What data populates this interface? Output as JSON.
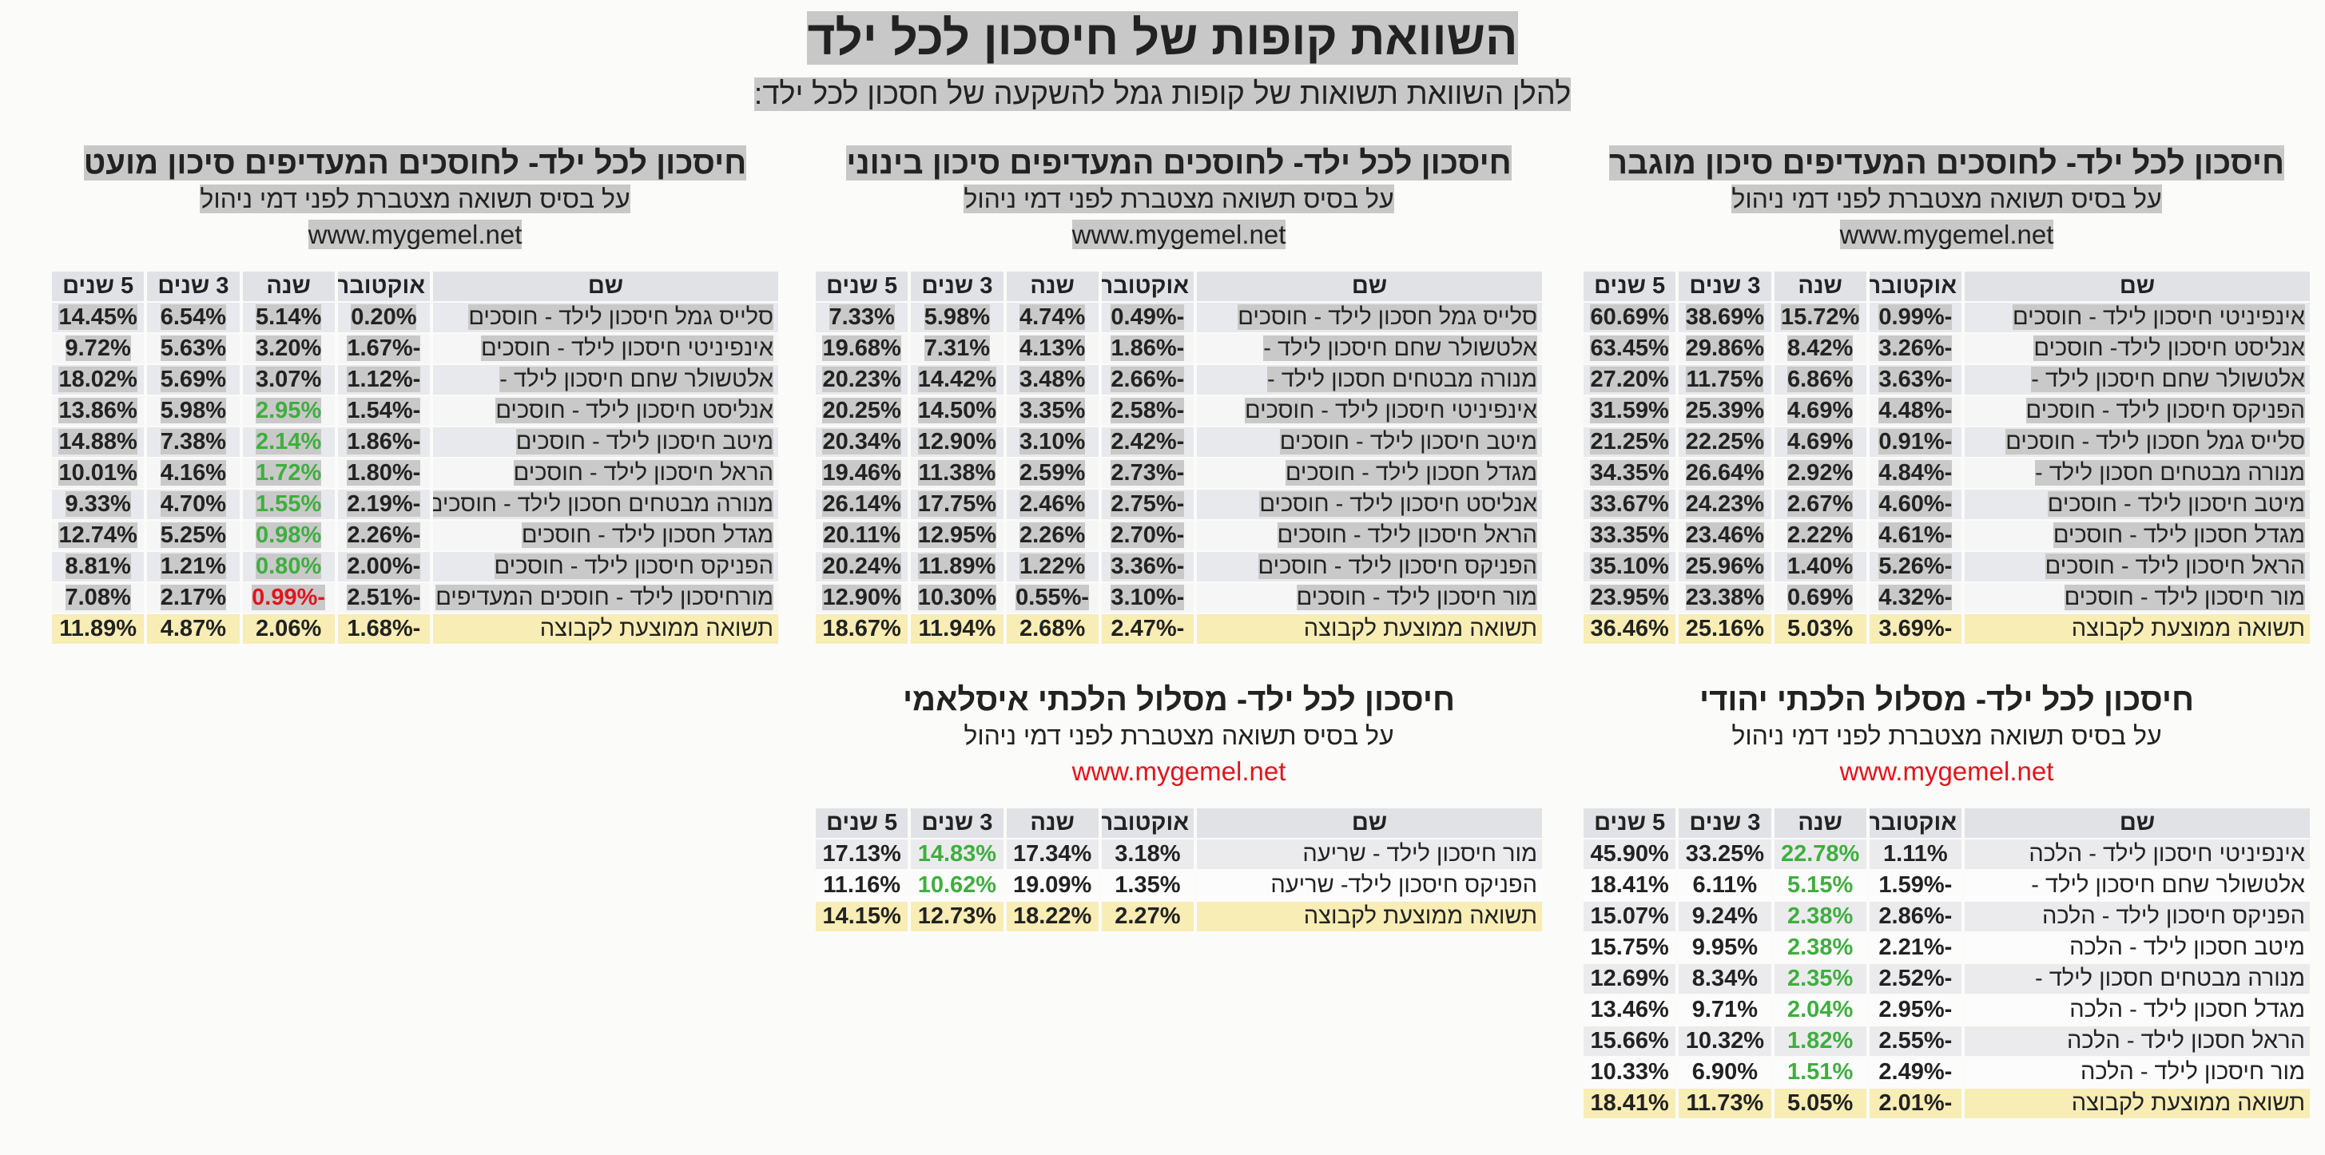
{
  "header": {
    "title": "השוואת קופות של חיסכון לכל ילד",
    "subtitle": "להלן השוואת תשואות של קופות גמל להשקעה של חסכון לכל ילד:"
  },
  "sections": [
    {
      "title": "חיסכון לכל ילד- לחוסכים המעדיפים סיכון מוגבר",
      "note": "על בסיס תשואה מצטברת לפני דמי ניהול",
      "site": "www.mygemel.net",
      "columns": [
        "שם",
        "אוקטובר",
        "שנה",
        "3 שנים",
        "5 שנים"
      ],
      "rows": [
        [
          "אינפיניטי חיסכון לילד - חוסכים",
          "-0.99%",
          "15.72%",
          "38.69%",
          "60.69%"
        ],
        [
          "אנליסט חיסכון לילד- חוסכים",
          "-3.26%",
          "8.42%",
          "29.86%",
          "63.45%"
        ],
        [
          "אלטשולר שחם חיסכון לילד -",
          "-3.63%",
          "6.86%",
          "11.75%",
          "27.20%"
        ],
        [
          "הפניקס חיסכון לילד - חוסכים",
          "-4.48%",
          "4.69%",
          "25.39%",
          "31.59%"
        ],
        [
          "סלייס גמל חסכון לילד - חוסכים",
          "-0.91%",
          "4.69%",
          "22.25%",
          "21.25%"
        ],
        [
          "מנורה מבטחים חסכון לילד -",
          "-4.84%",
          "2.92%",
          "26.64%",
          "34.35%"
        ],
        [
          "מיטב חיסכון לילד - חוסכים",
          "-4.60%",
          "2.67%",
          "24.23%",
          "33.67%"
        ],
        [
          "מגדל חסכון לילד - חוסכים",
          "-4.61%",
          "2.22%",
          "23.46%",
          "33.35%"
        ],
        [
          "הראל חיסכון לילד - חוסכים",
          "-5.26%",
          "1.40%",
          "25.96%",
          "35.10%"
        ],
        [
          "מור חיסכון לילד - חוסכים",
          "-4.32%",
          "0.69%",
          "23.38%",
          "23.95%"
        ],
        [
          "תשואה ממוצעת לקבוצה",
          "-3.69%",
          "5.03%",
          "25.16%",
          "36.46%"
        ]
      ]
    },
    {
      "title": "חיסכון לכל ילד- לחוסכים המעדיפים סיכון בינוני",
      "note": "על בסיס תשואה מצטברת לפני דמי ניהול",
      "site": "www.mygemel.net",
      "columns": [
        "שם",
        "אוקטובר",
        "שנה",
        "3 שנים",
        "5 שנים"
      ],
      "rows": [
        [
          "סלייס גמל חסכון לילד - חוסכים",
          "-0.49%",
          "4.74%",
          "5.98%",
          "7.33%"
        ],
        [
          "אלטשולר שחם חיסכון לילד -",
          "-1.86%",
          "4.13%",
          "7.31%",
          "19.68%"
        ],
        [
          "מנורה מבטחים חסכון לילד -",
          "-2.66%",
          "3.48%",
          "14.42%",
          "20.23%"
        ],
        [
          "אינפיניטי חיסכון לילד - חוסכים",
          "-2.58%",
          "3.35%",
          "14.50%",
          "20.25%"
        ],
        [
          "מיטב חיסכון לילד - חוסכים",
          "-2.42%",
          "3.10%",
          "12.90%",
          "20.34%"
        ],
        [
          "מגדל חסכון לילד - חוסכים",
          "-2.73%",
          "2.59%",
          "11.38%",
          "19.46%"
        ],
        [
          "אנליסט חיסכון לילד - חוסכים",
          "-2.75%",
          "2.46%",
          "17.75%",
          "26.14%"
        ],
        [
          "הראל חיסכון לילד - חוסכים",
          "-2.70%",
          "2.26%",
          "12.95%",
          "20.11%"
        ],
        [
          "הפניקס חיסכון לילד - חוסכים",
          "-3.36%",
          "1.22%",
          "11.89%",
          "20.24%"
        ],
        [
          "מור חיסכון לילד - חוסכים",
          "-3.10%",
          "-0.55%",
          "10.30%",
          "12.90%"
        ],
        [
          "תשואה ממוצעת לקבוצה",
          "-2.47%",
          "2.68%",
          "11.94%",
          "18.67%"
        ]
      ]
    },
    {
      "title": "חיסכון לכל ילד- לחוסכים המעדיפים סיכון מועט",
      "note": "על בסיס תשואה מצטברת לפני דמי ניהול",
      "site": "www.mygemel.net",
      "columns": [
        "שם",
        "אוקטובר",
        "שנה",
        "3 שנים",
        "5 שנים"
      ],
      "rows": [
        [
          "סלייס גמל חיסכון לילד - חוסכים",
          "0.20%",
          "5.14%",
          "6.54%",
          "14.45%"
        ],
        [
          "אינפיניטי חיסכון לילד - חוסכים",
          "-1.67%",
          "3.20%",
          "5.63%",
          "9.72%"
        ],
        [
          "אלטשולר שחם חיסכון לילד -",
          "-1.12%",
          "3.07%",
          "5.69%",
          "18.02%"
        ],
        [
          "אנליסט חיסכון לילד - חוסכים",
          "-1.54%",
          "2.95%",
          "5.98%",
          "13.86%"
        ],
        [
          "מיטב חיסכון לילד - חוסכים",
          "-1.86%",
          "2.14%",
          "7.38%",
          "14.88%"
        ],
        [
          "הראל חיסכון לילד - חוסכים",
          "-1.80%",
          "1.72%",
          "4.16%",
          "10.01%"
        ],
        [
          "מנורה מבטחים חסכון לילד - חוסכים",
          "-2.19%",
          "1.55%",
          "4.70%",
          "9.33%"
        ],
        [
          "מגדל חסכון לילד - חוסכים",
          "-2.26%",
          "0.98%",
          "5.25%",
          "12.74%"
        ],
        [
          "הפניקס חיסכון לילד - חוסכים",
          "-2.00%",
          "0.80%",
          "1.21%",
          "8.81%"
        ],
        [
          "מורחיסכון לילד - חוסכים המעדיפים",
          "-2.51%",
          "-0.99%",
          "2.17%",
          "7.08%"
        ],
        [
          "תשואה ממוצעת לקבוצה",
          "-1.68%",
          "2.06%",
          "4.87%",
          "11.89%"
        ]
      ]
    },
    {
      "title": "חיסכון לכל ילד- מסלול הלכתי יהודי",
      "note": "על בסיס תשואה מצטברת לפני דמי ניהול",
      "site": "www.mygemel.net",
      "columns": [
        "שם",
        "אוקטובר",
        "שנה",
        "3 שנים",
        "5 שנים"
      ],
      "rows": [
        [
          "אינפיניטי חיסכון לילד - הלכה",
          "1.11%",
          "22.78%",
          "33.25%",
          "45.90%"
        ],
        [
          "אלטשולר שחם חיסכון לילד -",
          "-1.59%",
          "5.15%",
          "6.11%",
          "18.41%"
        ],
        [
          "הפניקס חיסכון לילד - הלכה",
          "-2.86%",
          "2.38%",
          "9.24%",
          "15.07%"
        ],
        [
          "מיטב חסכון לילד - הלכה",
          "-2.21%",
          "2.38%",
          "9.95%",
          "15.75%"
        ],
        [
          "מנורה מבטחים חסכון לילד -",
          "-2.52%",
          "2.35%",
          "8.34%",
          "12.69%"
        ],
        [
          "מגדל חסכון לילד - הלכה",
          "-2.95%",
          "2.04%",
          "9.71%",
          "13.46%"
        ],
        [
          "הראל חסכון לילד - הלכה",
          "-2.55%",
          "1.82%",
          "10.32%",
          "15.66%"
        ],
        [
          "מור חיסכון לילד - הלכה",
          "-2.49%",
          "1.51%",
          "6.90%",
          "10.33%"
        ],
        [
          "תשואה ממוצעת לקבוצה",
          "-2.01%",
          "5.05%",
          "11.73%",
          "18.41%"
        ]
      ]
    },
    {
      "title": "חיסכון לכל ילד- מסלול הלכתי איסלאמי",
      "note": "על בסיס תשואה מצטברת לפני דמי ניהול",
      "site": "www.mygemel.net",
      "columns": [
        "שם",
        "אוקטובר",
        "שנה",
        "3 שנים",
        "5 שנים"
      ],
      "rows": [
        [
          "מור חיסכון לילד - שריעה",
          "3.18%",
          "17.34%",
          "14.83%",
          "17.13%"
        ],
        [
          "הפניקס חיסכון לילד- שריעה",
          "1.35%",
          "19.09%",
          "10.62%",
          "11.16%"
        ],
        [
          "תשואה ממוצעת לקבוצה",
          "2.27%",
          "18.22%",
          "12.73%",
          "14.15%"
        ]
      ]
    }
  ]
}
